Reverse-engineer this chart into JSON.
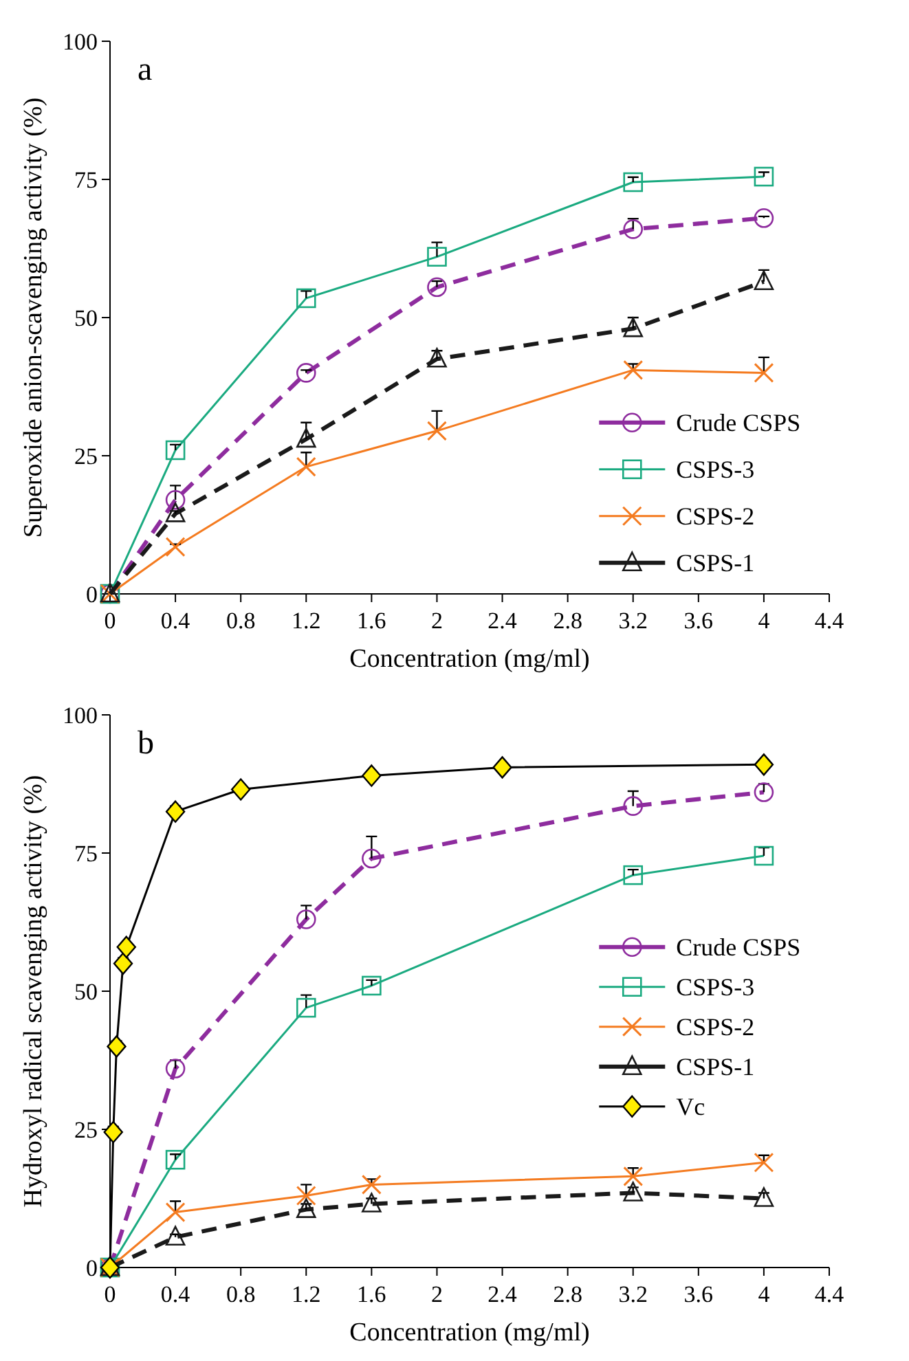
{
  "chart_data": [
    {
      "type": "line",
      "annotations": [
        "a"
      ],
      "xlabel": "Concentration (mg/ml)",
      "ylabel": "Superoxide anion-scavenging activity (%)",
      "xlim": [
        0,
        4.4
      ],
      "xticks": [
        0,
        0.4,
        0.8,
        1.2,
        1.6,
        2,
        2.4,
        2.8,
        3.2,
        3.6,
        4,
        4.4
      ],
      "ylim": [
        0,
        100
      ],
      "yticks": [
        0,
        25,
        50,
        75,
        100
      ],
      "grid": false,
      "legend": "bottom right",
      "x": [
        0,
        0.4,
        1.2,
        2,
        3.2,
        4
      ],
      "series": [
        {
          "name": "Crude CSPS",
          "color": "#8e2c9e",
          "marker": "circle",
          "line_style": "dashed",
          "values": [
            0,
            17,
            40,
            55.5,
            66,
            68
          ],
          "errors": [
            null,
            [
              17,
              19.6
            ],
            [
              40,
              40.5
            ],
            [
              55.5,
              56.6
            ],
            [
              66,
              67.9
            ],
            [
              68,
              68.3
            ]
          ]
        },
        {
          "name": "CSPS-3",
          "color": "#1aaa80",
          "marker": "square",
          "line_style": "solid",
          "values": [
            0,
            26,
            53.5,
            61,
            74.5,
            75.5
          ],
          "errors": [
            null,
            [
              26,
              27
            ],
            [
              53.5,
              54.8
            ],
            [
              61,
              63.6
            ],
            [
              74.5,
              75.4
            ],
            [
              75.5,
              76.3
            ]
          ]
        },
        {
          "name": "CSPS-2",
          "color": "#f47b20",
          "marker": "cross",
          "line_style": "solid",
          "values": [
            0,
            8.5,
            23,
            29.5,
            40.5,
            40
          ],
          "errors": [
            null,
            [
              8.5,
              9
            ],
            [
              23,
              25.6
            ],
            [
              29.5,
              33.1
            ],
            [
              40.5,
              41.6
            ],
            [
              40,
              42.8
            ]
          ]
        },
        {
          "name": "CSPS-1",
          "color": "#1a1a1a",
          "marker": "triangle",
          "line_style": "dashed",
          "values": [
            0,
            14.5,
            28,
            42.5,
            48,
            56.5
          ],
          "errors": [
            null,
            [
              14.5,
              15
            ],
            [
              28,
              31
            ],
            [
              42.5,
              44
            ],
            [
              48,
              50
            ],
            [
              56.5,
              58.6
            ]
          ]
        }
      ]
    },
    {
      "type": "line",
      "annotations": [
        "b"
      ],
      "xlabel": "Concentration (mg/ml)",
      "ylabel": "Hydroxyl radical scavenging activity (%)",
      "xlim": [
        0,
        4.4
      ],
      "xticks": [
        0,
        0.4,
        0.8,
        1.2,
        1.6,
        2,
        2.4,
        2.8,
        3.2,
        3.6,
        4,
        4.4
      ],
      "ylim": [
        0,
        100
      ],
      "yticks": [
        0,
        25,
        50,
        75,
        100
      ],
      "grid": false,
      "legend": "right",
      "x": [
        0,
        0.4,
        1.2,
        1.6,
        3.2,
        4
      ],
      "series": [
        {
          "name": "Crude CSPS",
          "color": "#8e2c9e",
          "marker": "circle",
          "line_style": "dashed",
          "values": [
            0,
            36,
            63,
            74,
            83.5,
            86
          ],
          "errors": [
            null,
            [
              36,
              37.5
            ],
            [
              63,
              65.5
            ],
            [
              74,
              78
            ],
            [
              83.5,
              86.2
            ],
            [
              86,
              87.5
            ]
          ]
        },
        {
          "name": "CSPS-3",
          "color": "#1aaa80",
          "marker": "square",
          "line_style": "solid",
          "values": [
            0,
            19.5,
            47,
            51,
            71,
            74.5
          ],
          "errors": [
            null,
            [
              19.5,
              20.5
            ],
            [
              47,
              49.3
            ],
            [
              51,
              52
            ],
            [
              71,
              72
            ],
            [
              74.5,
              76
            ]
          ]
        },
        {
          "name": "CSPS-2",
          "color": "#f47b20",
          "marker": "cross",
          "line_style": "solid",
          "values": [
            0,
            10,
            13,
            15,
            16.5,
            19
          ],
          "errors": [
            null,
            [
              10,
              12
            ],
            [
              13,
              15
            ],
            [
              15,
              16
            ],
            [
              16.5,
              18
            ],
            [
              19,
              20.3
            ]
          ]
        },
        {
          "name": "CSPS-1",
          "color": "#1a1a1a",
          "marker": "triangle",
          "line_style": "dashed",
          "values": [
            0,
            5.5,
            10.5,
            11.5,
            13.5,
            12.5
          ],
          "errors": [
            null,
            [
              5.5,
              6
            ],
            [
              10.5,
              11.5
            ],
            [
              11.5,
              12.5
            ],
            [
              13.5,
              14.5
            ],
            [
              12.5,
              13.5
            ]
          ]
        },
        {
          "name": "Vc",
          "color": "#000000",
          "marker": "diamond",
          "line_style": "solid",
          "x": [
            0,
            0.02,
            0.04,
            0.08,
            0.1,
            0.4,
            0.8,
            1.6,
            2.4,
            4
          ],
          "values": [
            0,
            24.5,
            40,
            55,
            58,
            82.5,
            86.5,
            89,
            90.5,
            91
          ],
          "colors": [
            "#ffee00",
            "#ffee00",
            "#ffee00",
            "#ffee00",
            "#ffee00",
            "#ffee00",
            "#ffee00",
            "#ffee00",
            "#ffee00",
            "#ffee00"
          ],
          "errors": [
            null,
            [
              24.5,
              25.5
            ],
            [
              40,
              41
            ],
            [
              55,
              56
            ],
            null,
            [
              82.5,
              83.5
            ],
            null,
            null,
            null,
            null
          ]
        }
      ]
    }
  ]
}
